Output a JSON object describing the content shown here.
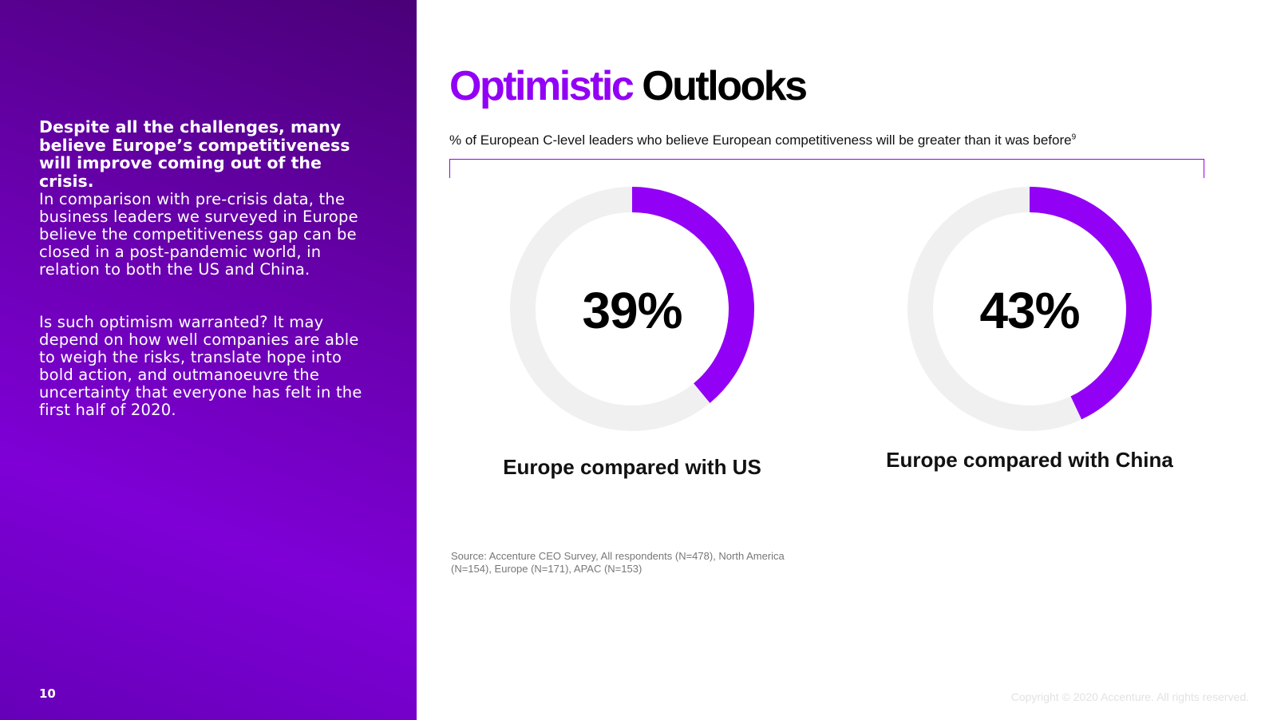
{
  "left_panel": {
    "lead": "Despite all the challenges, many believe Europe’s competitiveness will improve coming out of the crisis.",
    "paragraph_1": "In comparison with pre-crisis data, the business leaders we surveyed in Europe believe the competitiveness gap can be closed in a post-pandemic world, in relation to both the US and China.",
    "paragraph_2": "Is such optimism warranted? It may depend on how well companies are able to weigh the risks, translate hope into bold action, and outmanoeuvre the uncertainty that everyone has felt in the first half of 2020.",
    "page_number": "10"
  },
  "header": {
    "title_accent": "Optimistic",
    "title_rest": "Outlooks",
    "subtitle": "% of European C-level leaders who believe European competitiveness will be greater than it was before",
    "subtitle_footnote": "9"
  },
  "chart_data": {
    "type": "pie",
    "charts": [
      {
        "label": "Europe compared with US",
        "value": 39,
        "display": "39%"
      },
      {
        "label": "Europe compared with China",
        "value": 43,
        "display": "43%"
      }
    ],
    "unit": "%"
  },
  "colors": {
    "accent": "#9200f5",
    "track": "#f0f0f0",
    "panel_gradient_start": "#4a0078",
    "panel_gradient_end": "#7e00d6"
  },
  "footer": {
    "source_label": "Source:",
    "source_text": "Accenture CEO Survey, All respondents (N=478), North America (N=154), Europe (N=171), APAC (N=153)",
    "copyright": "Copyright © 2020 Accenture. All rights reserved."
  }
}
